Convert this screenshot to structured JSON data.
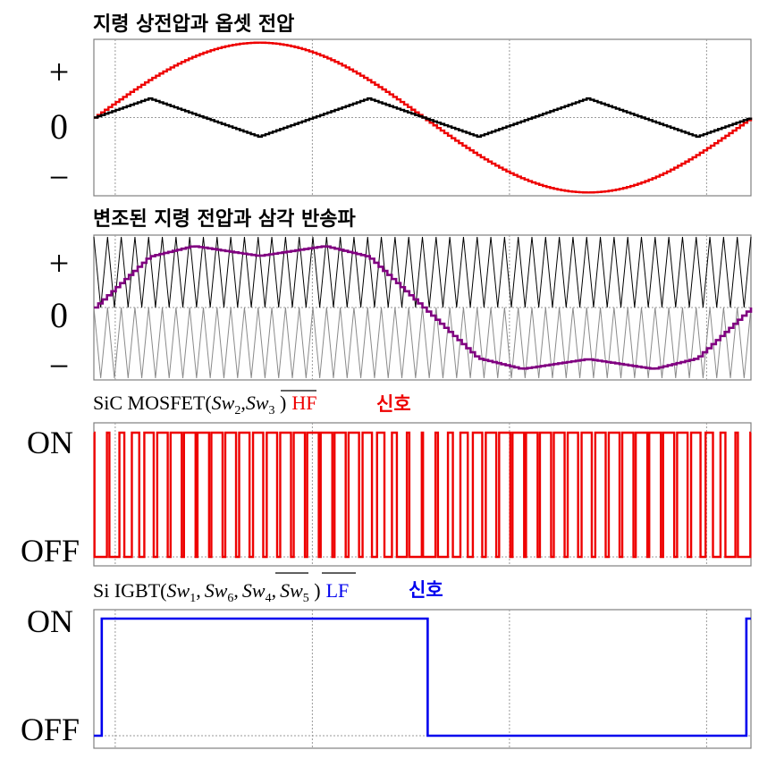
{
  "panels": [
    {
      "title": "지령 상전압과 옵셋 전압",
      "y_labels": [
        "+",
        "0",
        "−"
      ]
    },
    {
      "title": "변조된 지령 전압과 삼각 반송파",
      "y_labels": [
        "+",
        "0",
        "−"
      ]
    },
    {
      "title": {
        "device": "SiC MOSFET(",
        "sw_a": "Sw",
        "sw_a_sub": "2",
        "comma": ",",
        "sw_b": "Sw",
        "sw_b_sub": "3",
        "close": " )",
        "band": "HF",
        "signal": "신호"
      },
      "y_labels": [
        "ON",
        "OFF"
      ]
    },
    {
      "title": {
        "device": "Si IGBT(",
        "sw1": "Sw",
        "sw1_sub": "1",
        "sw6": "Sw",
        "sw6_sub": "6",
        "sw4": "Sw",
        "sw4_sub": "4",
        "sw5": "Sw",
        "sw5_sub": "5",
        "comma": ",",
        "close": " )",
        "band": "LF",
        "signal": "신호"
      },
      "y_labels": [
        "ON",
        "OFF"
      ]
    }
  ],
  "colors": {
    "red": "#ee0000",
    "black": "#000000",
    "purple": "#800080",
    "blue": "#0000ee",
    "grid": "#9a9a9a",
    "carrier_upper": "#000000",
    "carrier_lower": "#8a8a8a"
  },
  "chart_data": [
    {
      "type": "line",
      "description_of_axes": "normalized time over one fundamental period (0..1), normalized voltage (-1..1)",
      "xlim": [
        0,
        1
      ],
      "ylim": [
        -1,
        1
      ],
      "grid": true,
      "series": [
        {
          "color": "#ee0000",
          "shape": "sine",
          "amplitude": 0.98,
          "phase_deg": 0
        },
        {
          "color": "#000000",
          "shape": "triangle_third_harmonic",
          "x": [
            0,
            0.0833,
            0.25,
            0.4167,
            0.5833,
            0.75,
            0.9167,
            1.0
          ],
          "y": [
            0,
            0.25,
            -0.25,
            0.25,
            -0.25,
            0.25,
            -0.25,
            0
          ]
        }
      ]
    },
    {
      "type": "line",
      "xlim": [
        0,
        1
      ],
      "ylim": [
        -1,
        1
      ],
      "grid": true,
      "carrier_periods": 48,
      "series": [
        {
          "color": "#800080",
          "shape": "sine_minus_offset",
          "x": [
            0,
            0.0833,
            0.15,
            0.25,
            0.35,
            0.4167,
            0.5,
            0.5833,
            0.65,
            0.75,
            0.85,
            0.9167,
            1.0
          ],
          "y": [
            0,
            0.72,
            0.87,
            0.73,
            0.87,
            0.72,
            0,
            -0.72,
            -0.87,
            -0.73,
            -0.87,
            -0.72,
            0
          ]
        }
      ]
    },
    {
      "type": "line",
      "xlim": [
        0,
        1
      ],
      "ylim": [
        0,
        1
      ],
      "series": [
        {
          "color": "#ee0000",
          "shape": "pwm_switching",
          "levels": [
            "OFF",
            "ON"
          ]
        }
      ]
    },
    {
      "type": "line",
      "xlim": [
        0,
        1
      ],
      "ylim": [
        0,
        1
      ],
      "series": [
        {
          "color": "#0000ee",
          "shape": "step",
          "x": [
            0,
            0.012,
            0.012,
            0.508,
            0.508,
            0.993,
            0.993,
            1.0
          ],
          "y": [
            0,
            0,
            1,
            1,
            0,
            0,
            1,
            1
          ]
        }
      ]
    }
  ]
}
